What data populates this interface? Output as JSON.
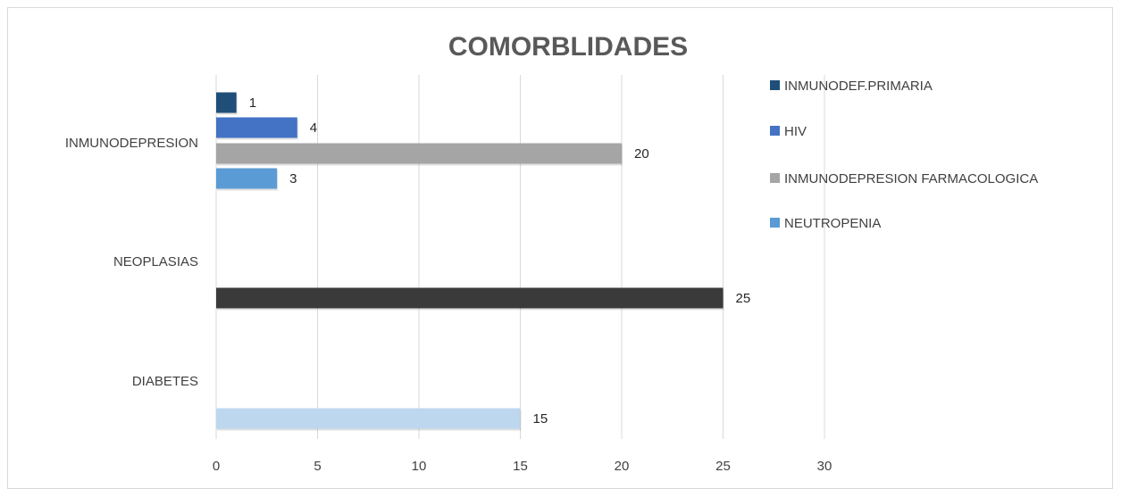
{
  "chart_data": {
    "type": "bar",
    "orientation": "horizontal",
    "title": "COMORBLIDADES",
    "xlim": [
      0,
      30
    ],
    "xticks": [
      0,
      5,
      10,
      15,
      20,
      25,
      30
    ],
    "grid": true,
    "legend_position": "right",
    "categories": [
      "INMUNODEPRESION",
      "NEOPLASIAS",
      "DIABETES"
    ],
    "series": [
      {
        "name": "INMUNODEF.PRIMARIA",
        "category": "INMUNODEPRESION",
        "value": 1,
        "color": "#1f4e79"
      },
      {
        "name": "HIV",
        "category": "INMUNODEPRESION",
        "value": 4,
        "color": "#4472c4"
      },
      {
        "name": "INMUNODEPRESION FARMACOLOGICA",
        "category": "INMUNODEPRESION",
        "value": 20,
        "color": "#a5a5a5"
      },
      {
        "name": "NEUTROPENIA",
        "category": "INMUNODEPRESION",
        "value": 3,
        "color": "#5b9bd5"
      },
      {
        "category": "NEOPLASIAS",
        "value": 25,
        "color": "#3a3a3a"
      },
      {
        "category": "DIABETES",
        "value": 15,
        "color": "#bdd7ee"
      }
    ],
    "legend": [
      {
        "label": "INMUNODEF.PRIMARIA",
        "color": "#1f4e79"
      },
      {
        "label": "HIV",
        "color": "#4472c4"
      },
      {
        "label": "INMUNODEPRESION FARMACOLOGICA",
        "color": "#a5a5a5"
      },
      {
        "label": "NEUTROPENIA",
        "color": "#5b9bd5"
      }
    ]
  }
}
